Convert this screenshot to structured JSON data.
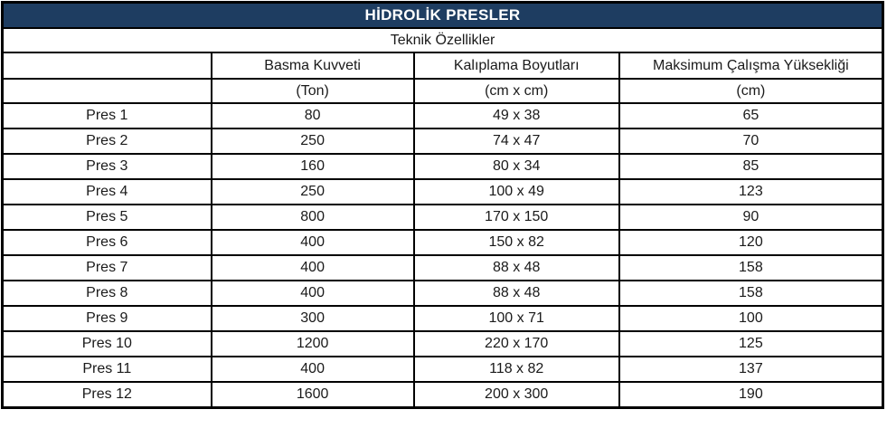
{
  "title": "HİDROLİK PRESLER",
  "subtitle": "Teknik Özellikler",
  "table": {
    "column_headers": [
      "",
      "Basma Kuvveti",
      "Kalıplama Boyutları",
      "Maksimum Çalışma Yüksekliği"
    ],
    "unit_row": [
      "",
      "(Ton)",
      "(cm x cm)",
      "(cm)"
    ],
    "rows": [
      [
        "Pres 1",
        "80",
        "49 x 38",
        "65"
      ],
      [
        "Pres 2",
        "250",
        "74 x 47",
        "70"
      ],
      [
        "Pres 3",
        "160",
        "80 x 34",
        "85"
      ],
      [
        "Pres 4",
        "250",
        "100 x 49",
        "123"
      ],
      [
        "Pres 5",
        "800",
        "170 x 150",
        "90"
      ],
      [
        "Pres 6",
        "400",
        "150 x 82",
        "120"
      ],
      [
        "Pres 7",
        "400",
        "88 x 48",
        "158"
      ],
      [
        "Pres 8",
        "400",
        "88 x 48",
        "158"
      ],
      [
        "Pres 9",
        "300",
        "100 x 71",
        "100"
      ],
      [
        "Pres 10",
        "1200",
        "220 x 170",
        "125"
      ],
      [
        "Pres 11",
        "400",
        "118 x 82",
        "137"
      ],
      [
        "Pres 12",
        "1600",
        "200 x 300",
        "190"
      ]
    ]
  },
  "colors": {
    "title_bg": "#1E3D61",
    "title_text": "#FFFFFF",
    "border": "#000000",
    "body_text": "#1A1A1A"
  }
}
